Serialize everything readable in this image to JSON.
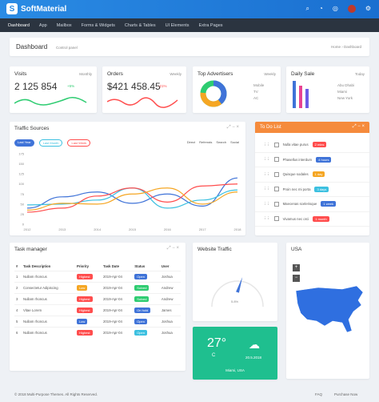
{
  "brand": {
    "name": "SoftMaterial",
    "letter": "S"
  },
  "nav": [
    "Dashboard",
    "App",
    "Mailbox",
    "Forms & Widgets",
    "Charts & Tables",
    "UI Elements",
    "Extra Pages"
  ],
  "page": {
    "title": "Dashboard",
    "subtitle": "Control panel",
    "breadcrumb": [
      "Home",
      "Dashboard"
    ]
  },
  "visits": {
    "title": "Visits",
    "period": "Monthly",
    "value": "2 125 854",
    "change": "+5%"
  },
  "orders": {
    "title": "Orders",
    "period": "Weekly",
    "value": "$421 458.45",
    "change": "-21%"
  },
  "advertisers": {
    "title": "Top Advertisers",
    "period": "Weekly",
    "legend": [
      "Mobile",
      "TV",
      "AC"
    ]
  },
  "dailysale": {
    "title": "Daily Sale",
    "period": "Today",
    "legend": [
      "Abu Dhabi",
      "Miami",
      "New York"
    ]
  },
  "traffic": {
    "title": "Traffic Sources",
    "tabs": [
      "Last Year",
      "Last Month",
      "Last Week"
    ],
    "legend": [
      "Direct",
      "Referrals",
      "Search",
      "Social"
    ]
  },
  "chart_data": {
    "type": "line",
    "x": [
      "2012",
      "2013",
      "2014",
      "2015",
      "2016",
      "2017",
      "2018"
    ],
    "ylim": [
      0,
      175
    ],
    "yticks": [
      "0",
      "25",
      "50",
      "75",
      "100",
      "125",
      "150",
      "175"
    ],
    "series": [
      {
        "name": "Direct",
        "color": "#3f73d8",
        "values": [
          40,
          68,
          80,
          52,
          75,
          45,
          115
        ]
      },
      {
        "name": "Referrals",
        "color": "#3cc0e0",
        "values": [
          48,
          50,
          60,
          90,
          40,
          60,
          85
        ]
      },
      {
        "name": "Search",
        "color": "#ff4d4d",
        "values": [
          30,
          40,
          70,
          90,
          55,
          95,
          100
        ]
      },
      {
        "name": "Social",
        "color": "#f5a623",
        "values": [
          35,
          52,
          50,
          75,
          90,
          50,
          80
        ]
      }
    ]
  },
  "todo": {
    "title": "To Do List",
    "items": [
      {
        "text": "Nulla vitae purus",
        "badge": "2 mins",
        "color": "#ff4d4d"
      },
      {
        "text": "Phasellus interdum",
        "badge": "4 hours",
        "color": "#3f73d8"
      },
      {
        "text": "Quisque sodales",
        "badge": "1 day",
        "color": "#f5a623"
      },
      {
        "text": "Proin nec mi porta",
        "badge": "3 days",
        "color": "#3cc0e0"
      },
      {
        "text": "Maecenas scelerisque",
        "badge": "1 week",
        "color": "#3f73d8"
      },
      {
        "text": "Vivamus nec orci",
        "badge": "1 month",
        "color": "#ff4d4d"
      }
    ]
  },
  "tasks": {
    "title": "Task manager",
    "headers": [
      "#",
      "Task Description",
      "Priority",
      "Task Date",
      "Status",
      "User"
    ],
    "rows": [
      [
        "1",
        "Nullam rhoncus",
        "Highest",
        "2019-Apr-04",
        "Open",
        "Joshua",
        "#ff4d4d",
        "#3f73d8"
      ],
      [
        "2",
        "Consectetur Adipiscing",
        "Low",
        "2019-Apr-04",
        "Solved",
        "Andrew",
        "#f5a623",
        "#2ecc71"
      ],
      [
        "3",
        "Nullam rhoncus",
        "Highest",
        "2019-Apr-04",
        "Solved",
        "Andrew",
        "#ff4d4d",
        "#2ecc71"
      ],
      [
        "4",
        "Vitae Lorem",
        "Highest",
        "2019-Apr-04",
        "On hold",
        "James",
        "#ff4d4d",
        "#3f73d8"
      ],
      [
        "5",
        "Nullam rhoncus",
        "Low",
        "2019-Apr-04",
        "Open",
        "Joshua",
        "#3f73d8",
        "#3f73d8"
      ],
      [
        "6",
        "Nullam rhoncus",
        "Highest",
        "2019-Apr-04",
        "Open",
        "Joshua",
        "#ff4d4d",
        "#3cc0e0"
      ]
    ]
  },
  "website": {
    "title": "Website Traffic",
    "gauge_value": "5.8%",
    "gauge_fraction": 0.6
  },
  "weather": {
    "temp": "27°",
    "unit": "C",
    "date": "20.5.2018",
    "city": "Miami, USA"
  },
  "usa": {
    "title": "USA"
  },
  "footer": {
    "copyright": "© 2018 Multi-Purpose Themes. All Rights Reserved.",
    "links": [
      "FAQ",
      "Purchase Now"
    ]
  }
}
